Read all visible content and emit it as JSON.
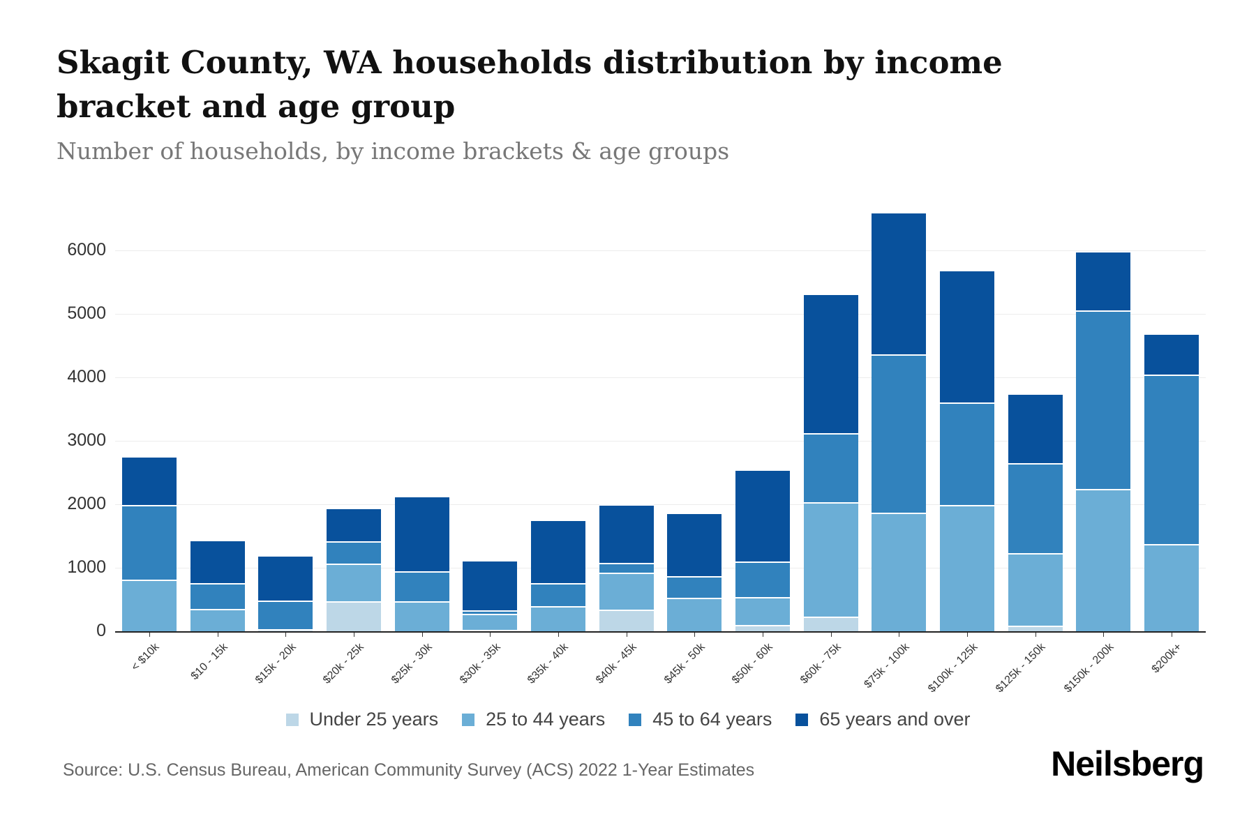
{
  "header": {
    "title": "Skagit County, WA households distribution by income bracket and age group",
    "subtitle": "Number of households, by income brackets & age groups"
  },
  "footer": {
    "source": "Source: U.S. Census Bureau, American Community Survey (ACS) 2022 1-Year Estimates",
    "brand": "Neilsberg"
  },
  "colors": {
    "under_25": "#bdd7e7",
    "25_44": "#6baed6",
    "45_64": "#3182bd",
    "65_plus": "#08519c"
  },
  "legend": [
    {
      "label": "Under 25 years",
      "color": "#bdd7e7"
    },
    {
      "label": "25 to 44 years",
      "color": "#6baed6"
    },
    {
      "label": "45 to 64 years",
      "color": "#3182bd"
    },
    {
      "label": "65 years and over",
      "color": "#08519c"
    }
  ],
  "chart_data": {
    "type": "bar",
    "stacked": true,
    "title": "Skagit County, WA households distribution by income bracket and age group",
    "subtitle": "Number of households, by income brackets & age groups",
    "xlabel": "",
    "ylabel": "",
    "ylim": [
      0,
      6600
    ],
    "yticks": [
      0,
      1000,
      2000,
      3000,
      4000,
      5000,
      6000
    ],
    "grid": true,
    "legend_position": "bottom",
    "categories": [
      "< $10k",
      "$10 - 15k",
      "$15k - 20k",
      "$20k - 25k",
      "$25k - 30k",
      "$30k - 35k",
      "$35k - 40k",
      "$40k - 45k",
      "$45k - 50k",
      "$50k - 60k",
      "$60k - 75k",
      "$75k - 100k",
      "$100k - 125k",
      "$125k - 150k",
      "$150k - 200k",
      "$200k+"
    ],
    "series": [
      {
        "name": "Under 25 years",
        "color": "#bdd7e7",
        "values": [
          0,
          0,
          30,
          470,
          0,
          22,
          0,
          337,
          0,
          103,
          236,
          0,
          0,
          90,
          0,
          0
        ]
      },
      {
        "name": "25 to 44 years",
        "color": "#6baed6",
        "values": [
          810,
          354,
          0,
          600,
          475,
          248,
          400,
          588,
          528,
          436,
          1798,
          1865,
          1990,
          1140,
          2240,
          1370
        ]
      },
      {
        "name": "45 to 64 years",
        "color": "#3182bd",
        "values": [
          1175,
          406,
          450,
          350,
          470,
          63,
          360,
          149,
          343,
          561,
          1089,
          2497,
          1612,
          1415,
          2810,
          2670
        ]
      },
      {
        "name": "65 years and over",
        "color": "#08519c",
        "values": [
          775,
          683,
          720,
          530,
          1185,
          787,
          1000,
          926,
          992,
          1446,
          2194,
          2238,
          2091,
          1100,
          940,
          650
        ]
      }
    ]
  }
}
